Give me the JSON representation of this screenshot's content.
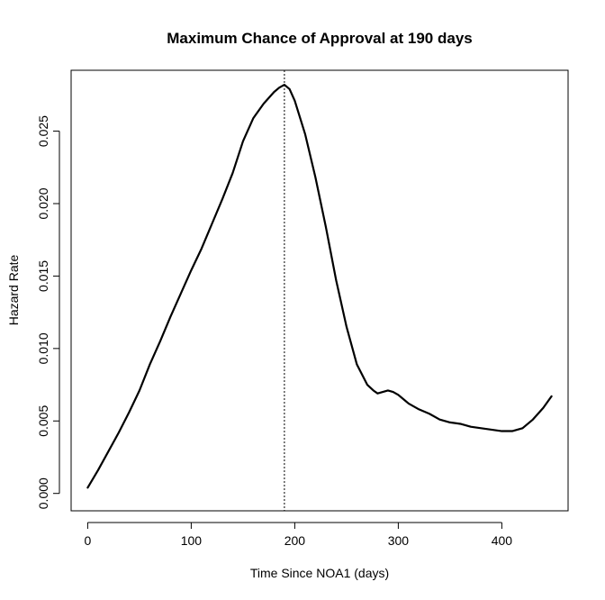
{
  "chart_data": {
    "type": "line",
    "title": "Maximum Chance of Approval at 190 days",
    "xlabel": "Time Since NOA1 (days)",
    "ylabel": "Hazard Rate",
    "xlim": [
      -16,
      464
    ],
    "ylim": [
      -0.0012,
      0.0292
    ],
    "xticks": [
      0,
      100,
      200,
      300,
      400
    ],
    "xtick_labels": [
      "0",
      "100",
      "200",
      "300",
      "400"
    ],
    "yticks": [
      0.0,
      0.005,
      0.01,
      0.015,
      0.02,
      0.025
    ],
    "ytick_labels": [
      "0.000",
      "0.005",
      "0.010",
      "0.015",
      "0.020",
      "0.025"
    ],
    "vline": {
      "x": 190,
      "style": "dotted",
      "color": "#000000"
    },
    "grid": false,
    "legend": "none",
    "line_color": "#000000",
    "series": [
      {
        "x": [
          0,
          10,
          20,
          30,
          40,
          50,
          60,
          70,
          80,
          90,
          100,
          110,
          120,
          130,
          140,
          150,
          160,
          170,
          180,
          185,
          190,
          195,
          200,
          210,
          220,
          230,
          240,
          250,
          260,
          270,
          276,
          280,
          285,
          290,
          295,
          300,
          305,
          310,
          320,
          330,
          340,
          350,
          360,
          370,
          380,
          390,
          400,
          410,
          420,
          430,
          440,
          448
        ],
        "y": [
          0.0004,
          0.0016,
          0.0029,
          0.0042,
          0.0056,
          0.0071,
          0.0089,
          0.0105,
          0.0122,
          0.0138,
          0.0154,
          0.0169,
          0.0186,
          0.0203,
          0.0221,
          0.0243,
          0.0259,
          0.0269,
          0.0277,
          0.028,
          0.0282,
          0.0279,
          0.0271,
          0.0248,
          0.0218,
          0.0184,
          0.0147,
          0.0115,
          0.0089,
          0.0075,
          0.0071,
          0.0069,
          0.007,
          0.0071,
          0.007,
          0.0068,
          0.0065,
          0.0062,
          0.0058,
          0.0055,
          0.0051,
          0.0049,
          0.0048,
          0.0046,
          0.0045,
          0.0044,
          0.0043,
          0.0043,
          0.0045,
          0.0051,
          0.0059,
          0.0067
        ]
      }
    ]
  }
}
